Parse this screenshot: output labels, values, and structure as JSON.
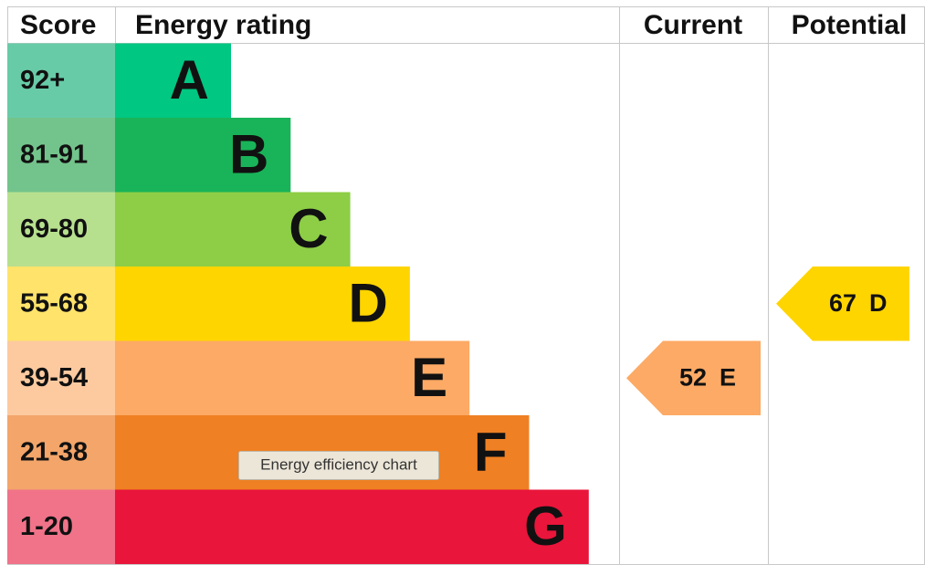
{
  "headers": {
    "score": "Score",
    "rating": "Energy rating",
    "current": "Current",
    "potential": "Potential"
  },
  "bands": [
    {
      "score": "92+",
      "letter": "A"
    },
    {
      "score": "81-91",
      "letter": "B"
    },
    {
      "score": "69-80",
      "letter": "C"
    },
    {
      "score": "55-68",
      "letter": "D"
    },
    {
      "score": "39-54",
      "letter": "E"
    },
    {
      "score": "21-38",
      "letter": "F"
    },
    {
      "score": "1-20",
      "letter": "G"
    }
  ],
  "current": {
    "value": 52,
    "letter": "E"
  },
  "potential": {
    "value": 67,
    "letter": "D"
  },
  "tooltip": "Energy efficiency chart"
}
